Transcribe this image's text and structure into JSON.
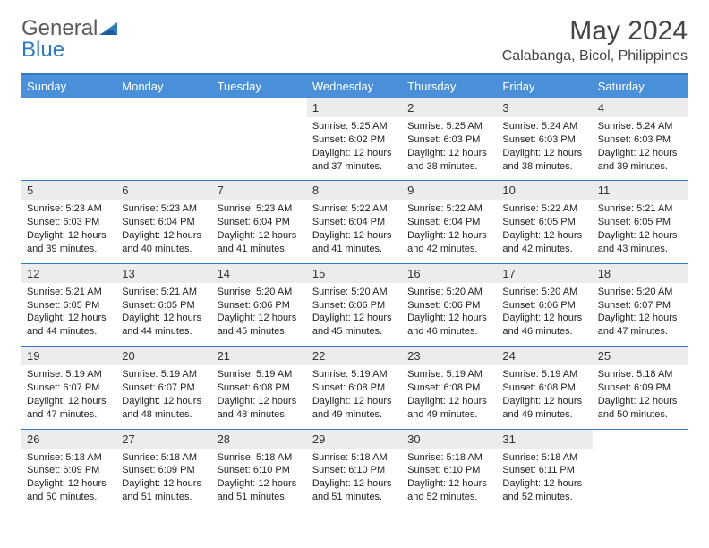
{
  "brand": {
    "part1": "General",
    "part2": "Blue"
  },
  "title": "May 2024",
  "location": "Calabanga, Bicol, Philippines",
  "colors": {
    "accent": "#2f7ac0",
    "header_bg": "#4a90d9",
    "header_text": "#ffffff",
    "date_bg": "#ececec",
    "text": "#222222",
    "brand_gray": "#5a5a5a"
  },
  "day_names": [
    "Sunday",
    "Monday",
    "Tuesday",
    "Wednesday",
    "Thursday",
    "Friday",
    "Saturday"
  ],
  "weeks": [
    [
      {
        "date": "",
        "lines": []
      },
      {
        "date": "",
        "lines": []
      },
      {
        "date": "",
        "lines": []
      },
      {
        "date": "1",
        "lines": [
          "Sunrise: 5:25 AM",
          "Sunset: 6:02 PM",
          "Daylight: 12 hours",
          "and 37 minutes."
        ]
      },
      {
        "date": "2",
        "lines": [
          "Sunrise: 5:25 AM",
          "Sunset: 6:03 PM",
          "Daylight: 12 hours",
          "and 38 minutes."
        ]
      },
      {
        "date": "3",
        "lines": [
          "Sunrise: 5:24 AM",
          "Sunset: 6:03 PM",
          "Daylight: 12 hours",
          "and 38 minutes."
        ]
      },
      {
        "date": "4",
        "lines": [
          "Sunrise: 5:24 AM",
          "Sunset: 6:03 PM",
          "Daylight: 12 hours",
          "and 39 minutes."
        ]
      }
    ],
    [
      {
        "date": "5",
        "lines": [
          "Sunrise: 5:23 AM",
          "Sunset: 6:03 PM",
          "Daylight: 12 hours",
          "and 39 minutes."
        ]
      },
      {
        "date": "6",
        "lines": [
          "Sunrise: 5:23 AM",
          "Sunset: 6:04 PM",
          "Daylight: 12 hours",
          "and 40 minutes."
        ]
      },
      {
        "date": "7",
        "lines": [
          "Sunrise: 5:23 AM",
          "Sunset: 6:04 PM",
          "Daylight: 12 hours",
          "and 41 minutes."
        ]
      },
      {
        "date": "8",
        "lines": [
          "Sunrise: 5:22 AM",
          "Sunset: 6:04 PM",
          "Daylight: 12 hours",
          "and 41 minutes."
        ]
      },
      {
        "date": "9",
        "lines": [
          "Sunrise: 5:22 AM",
          "Sunset: 6:04 PM",
          "Daylight: 12 hours",
          "and 42 minutes."
        ]
      },
      {
        "date": "10",
        "lines": [
          "Sunrise: 5:22 AM",
          "Sunset: 6:05 PM",
          "Daylight: 12 hours",
          "and 42 minutes."
        ]
      },
      {
        "date": "11",
        "lines": [
          "Sunrise: 5:21 AM",
          "Sunset: 6:05 PM",
          "Daylight: 12 hours",
          "and 43 minutes."
        ]
      }
    ],
    [
      {
        "date": "12",
        "lines": [
          "Sunrise: 5:21 AM",
          "Sunset: 6:05 PM",
          "Daylight: 12 hours",
          "and 44 minutes."
        ]
      },
      {
        "date": "13",
        "lines": [
          "Sunrise: 5:21 AM",
          "Sunset: 6:05 PM",
          "Daylight: 12 hours",
          "and 44 minutes."
        ]
      },
      {
        "date": "14",
        "lines": [
          "Sunrise: 5:20 AM",
          "Sunset: 6:06 PM",
          "Daylight: 12 hours",
          "and 45 minutes."
        ]
      },
      {
        "date": "15",
        "lines": [
          "Sunrise: 5:20 AM",
          "Sunset: 6:06 PM",
          "Daylight: 12 hours",
          "and 45 minutes."
        ]
      },
      {
        "date": "16",
        "lines": [
          "Sunrise: 5:20 AM",
          "Sunset: 6:06 PM",
          "Daylight: 12 hours",
          "and 46 minutes."
        ]
      },
      {
        "date": "17",
        "lines": [
          "Sunrise: 5:20 AM",
          "Sunset: 6:06 PM",
          "Daylight: 12 hours",
          "and 46 minutes."
        ]
      },
      {
        "date": "18",
        "lines": [
          "Sunrise: 5:20 AM",
          "Sunset: 6:07 PM",
          "Daylight: 12 hours",
          "and 47 minutes."
        ]
      }
    ],
    [
      {
        "date": "19",
        "lines": [
          "Sunrise: 5:19 AM",
          "Sunset: 6:07 PM",
          "Daylight: 12 hours",
          "and 47 minutes."
        ]
      },
      {
        "date": "20",
        "lines": [
          "Sunrise: 5:19 AM",
          "Sunset: 6:07 PM",
          "Daylight: 12 hours",
          "and 48 minutes."
        ]
      },
      {
        "date": "21",
        "lines": [
          "Sunrise: 5:19 AM",
          "Sunset: 6:08 PM",
          "Daylight: 12 hours",
          "and 48 minutes."
        ]
      },
      {
        "date": "22",
        "lines": [
          "Sunrise: 5:19 AM",
          "Sunset: 6:08 PM",
          "Daylight: 12 hours",
          "and 49 minutes."
        ]
      },
      {
        "date": "23",
        "lines": [
          "Sunrise: 5:19 AM",
          "Sunset: 6:08 PM",
          "Daylight: 12 hours",
          "and 49 minutes."
        ]
      },
      {
        "date": "24",
        "lines": [
          "Sunrise: 5:19 AM",
          "Sunset: 6:08 PM",
          "Daylight: 12 hours",
          "and 49 minutes."
        ]
      },
      {
        "date": "25",
        "lines": [
          "Sunrise: 5:18 AM",
          "Sunset: 6:09 PM",
          "Daylight: 12 hours",
          "and 50 minutes."
        ]
      }
    ],
    [
      {
        "date": "26",
        "lines": [
          "Sunrise: 5:18 AM",
          "Sunset: 6:09 PM",
          "Daylight: 12 hours",
          "and 50 minutes."
        ]
      },
      {
        "date": "27",
        "lines": [
          "Sunrise: 5:18 AM",
          "Sunset: 6:09 PM",
          "Daylight: 12 hours",
          "and 51 minutes."
        ]
      },
      {
        "date": "28",
        "lines": [
          "Sunrise: 5:18 AM",
          "Sunset: 6:10 PM",
          "Daylight: 12 hours",
          "and 51 minutes."
        ]
      },
      {
        "date": "29",
        "lines": [
          "Sunrise: 5:18 AM",
          "Sunset: 6:10 PM",
          "Daylight: 12 hours",
          "and 51 minutes."
        ]
      },
      {
        "date": "30",
        "lines": [
          "Sunrise: 5:18 AM",
          "Sunset: 6:10 PM",
          "Daylight: 12 hours",
          "and 52 minutes."
        ]
      },
      {
        "date": "31",
        "lines": [
          "Sunrise: 5:18 AM",
          "Sunset: 6:11 PM",
          "Daylight: 12 hours",
          "and 52 minutes."
        ]
      },
      {
        "date": "",
        "lines": []
      }
    ]
  ]
}
